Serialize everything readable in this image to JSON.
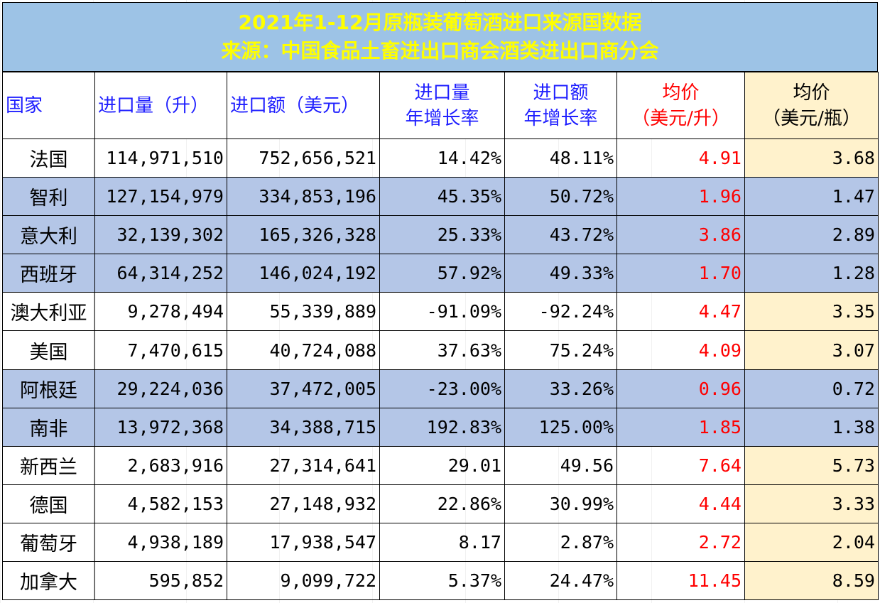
{
  "title": {
    "line1": "2021年1-12月原瓶装葡萄酒进口来源国数据",
    "line2": "来源：中国食品土畜进出口商会酒类进出口商分会"
  },
  "header": {
    "country": "国家",
    "volume": "进口量（升）",
    "value": "进口额（美元）",
    "volume_growth_1": "进口量",
    "volume_growth_2": "年增长率",
    "value_growth_1": "进口额",
    "value_growth_2": "年增长率",
    "avg_liter_1": "均价",
    "avg_liter_2": "（美元/升）",
    "avg_bottle_1": "均价",
    "avg_bottle_2": "（美元/瓶）"
  },
  "rows": [
    {
      "country": "法国",
      "volume": "114,971,510",
      "value": "752,656,521",
      "volume_growth": "14.42%",
      "value_growth": "48.11%",
      "avg_liter": "4.91",
      "avg_bottle": "3.68",
      "highlight": false
    },
    {
      "country": "智利",
      "volume": "127,154,979",
      "value": "334,853,196",
      "volume_growth": "45.35%",
      "value_growth": "50.72%",
      "avg_liter": "1.96",
      "avg_bottle": "1.47",
      "highlight": true
    },
    {
      "country": "意大利",
      "volume": "32,139,302",
      "value": "165,326,328",
      "volume_growth": "25.33%",
      "value_growth": "43.72%",
      "avg_liter": "3.86",
      "avg_bottle": "2.89",
      "highlight": true
    },
    {
      "country": "西班牙",
      "volume": "64,314,252",
      "value": "146,024,192",
      "volume_growth": "57.92%",
      "value_growth": "49.33%",
      "avg_liter": "1.70",
      "avg_bottle": "1.28",
      "highlight": true
    },
    {
      "country": "澳大利亚",
      "volume": "9,278,494",
      "value": "55,339,889",
      "volume_growth": "-91.09%",
      "value_growth": "-92.24%",
      "avg_liter": "4.47",
      "avg_bottle": "3.35",
      "highlight": false
    },
    {
      "country": "美国",
      "volume": "7,470,615",
      "value": "40,724,088",
      "volume_growth": "37.63%",
      "value_growth": "75.24%",
      "avg_liter": "4.09",
      "avg_bottle": "3.07",
      "highlight": false
    },
    {
      "country": "阿根廷",
      "volume": "29,224,036",
      "value": "37,472,005",
      "volume_growth": "-23.00%",
      "value_growth": "33.26%",
      "avg_liter": "0.96",
      "avg_bottle": "0.72",
      "highlight": true
    },
    {
      "country": "南非",
      "volume": "13,972,368",
      "value": "34,388,715",
      "volume_growth": "192.83%",
      "value_growth": "125.00%",
      "avg_liter": "1.85",
      "avg_bottle": "1.38",
      "highlight": true
    },
    {
      "country": "新西兰",
      "volume": "2,683,916",
      "value": "27,314,641",
      "volume_growth": "29.01",
      "value_growth": "49.56",
      "avg_liter": "7.64",
      "avg_bottle": "5.73",
      "highlight": false
    },
    {
      "country": "德国",
      "volume": "4,582,153",
      "value": "27,148,932",
      "volume_growth": "22.86%",
      "value_growth": "30.99%",
      "avg_liter": "4.44",
      "avg_bottle": "3.33",
      "highlight": false
    },
    {
      "country": "葡萄牙",
      "volume": "4,938,189",
      "value": "17,938,547",
      "volume_growth": "8.17",
      "value_growth": "2.87%",
      "avg_liter": "2.72",
      "avg_bottle": "2.04",
      "highlight": false
    },
    {
      "country": "加拿大",
      "volume": "595,852",
      "value": "9,099,722",
      "volume_growth": "5.37%",
      "value_growth": "24.47%",
      "avg_liter": "11.45",
      "avg_bottle": "8.59",
      "highlight": false
    }
  ],
  "colors": {
    "title_bg": "#9dc3e6",
    "title_text": "#ffff00",
    "header_text": "#1f1fff",
    "avg_text": "#ff0000",
    "highlight_row": "#b4c6e7",
    "bottle_col_bg": "#fff2cc"
  }
}
